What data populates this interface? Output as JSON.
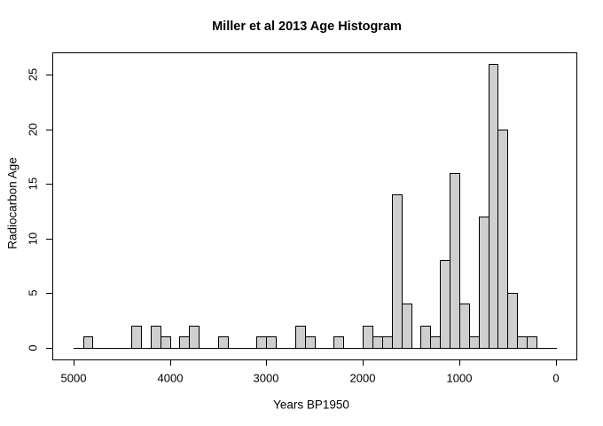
{
  "colors": {
    "background": "#ffffff",
    "bar_fill": "#cfcfcf",
    "bar_stroke": "#000000",
    "axis": "#000000",
    "text": "#000000"
  },
  "chart_data": {
    "type": "bar",
    "subtype": "histogram",
    "title": "Miller et al 2013 Age Histogram",
    "xlabel": "Years BP1950",
    "ylabel": "Radiocarbon Age",
    "x_axis_reversed": true,
    "xlim": [
      5200,
      -200
    ],
    "ylim": [
      0,
      27
    ],
    "x_ticks": [
      5000,
      4000,
      3000,
      2000,
      1000,
      0
    ],
    "y_ticks": [
      0,
      5,
      10,
      15,
      20,
      25
    ],
    "grid": false,
    "legend": null,
    "bin_width": 100,
    "baseline_span": [
      5000,
      0
    ],
    "bins": [
      {
        "from": 4900,
        "to": 4800,
        "count": 1
      },
      {
        "from": 4400,
        "to": 4300,
        "count": 2
      },
      {
        "from": 4200,
        "to": 4100,
        "count": 2
      },
      {
        "from": 4100,
        "to": 4000,
        "count": 1
      },
      {
        "from": 3900,
        "to": 3800,
        "count": 1
      },
      {
        "from": 3800,
        "to": 3700,
        "count": 2
      },
      {
        "from": 3500,
        "to": 3400,
        "count": 1
      },
      {
        "from": 3100,
        "to": 3000,
        "count": 1
      },
      {
        "from": 3000,
        "to": 2900,
        "count": 1
      },
      {
        "from": 2700,
        "to": 2600,
        "count": 2
      },
      {
        "from": 2600,
        "to": 2500,
        "count": 1
      },
      {
        "from": 2300,
        "to": 2200,
        "count": 1
      },
      {
        "from": 2000,
        "to": 1900,
        "count": 2
      },
      {
        "from": 1900,
        "to": 1800,
        "count": 1
      },
      {
        "from": 1800,
        "to": 1700,
        "count": 1
      },
      {
        "from": 1700,
        "to": 1600,
        "count": 14
      },
      {
        "from": 1600,
        "to": 1500,
        "count": 4
      },
      {
        "from": 1400,
        "to": 1300,
        "count": 2
      },
      {
        "from": 1300,
        "to": 1200,
        "count": 1
      },
      {
        "from": 1200,
        "to": 1100,
        "count": 8
      },
      {
        "from": 1100,
        "to": 1000,
        "count": 16
      },
      {
        "from": 1000,
        "to": 900,
        "count": 4
      },
      {
        "from": 900,
        "to": 800,
        "count": 1
      },
      {
        "from": 800,
        "to": 700,
        "count": 12
      },
      {
        "from": 700,
        "to": 600,
        "count": 26
      },
      {
        "from": 600,
        "to": 500,
        "count": 20
      },
      {
        "from": 500,
        "to": 400,
        "count": 5
      },
      {
        "from": 400,
        "to": 300,
        "count": 1
      },
      {
        "from": 300,
        "to": 200,
        "count": 1
      }
    ]
  }
}
